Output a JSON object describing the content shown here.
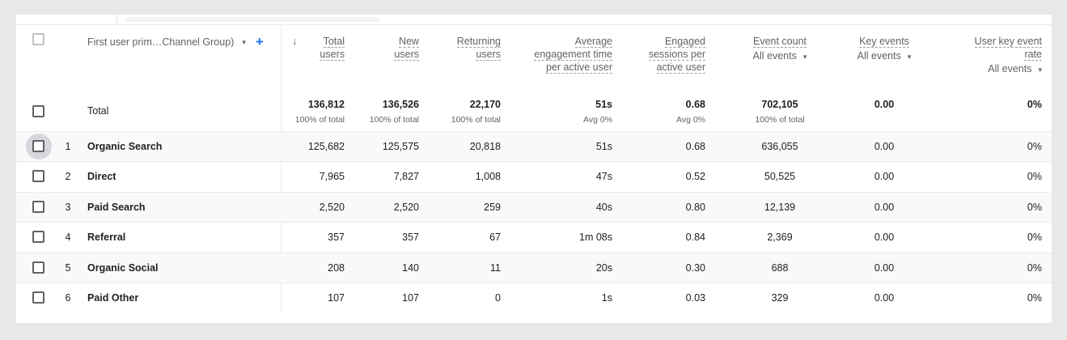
{
  "dimension_header": {
    "label": "First user prim…Channel Group)",
    "caret": "▾",
    "add": "+"
  },
  "sort_arrow": "↓",
  "metric_headers": [
    {
      "lines": [
        "Total",
        "users"
      ],
      "selector": ""
    },
    {
      "lines": [
        "New",
        "users"
      ],
      "selector": ""
    },
    {
      "lines": [
        "Returning",
        "users"
      ],
      "selector": ""
    },
    {
      "lines": [
        "Average",
        "engagement time",
        "per active user"
      ],
      "selector": ""
    },
    {
      "lines": [
        "Engaged",
        "sessions per",
        "active user"
      ],
      "selector": ""
    },
    {
      "lines": [
        "Event count"
      ],
      "selector": "All events"
    },
    {
      "lines": [
        "Key events"
      ],
      "selector": "All events"
    },
    {
      "lines": [
        "User key event",
        "rate"
      ],
      "selector": "All events"
    }
  ],
  "total": {
    "label": "Total",
    "values": [
      "136,812",
      "136,526",
      "22,170",
      "51s",
      "0.68",
      "702,105",
      "0.00",
      "0%"
    ],
    "subs": [
      "100% of total",
      "100% of total",
      "100% of total",
      "Avg 0%",
      "Avg 0%",
      "100% of total",
      "",
      ""
    ]
  },
  "rows": [
    {
      "index": "1",
      "name": "Organic Search",
      "values": [
        "125,682",
        "125,575",
        "20,818",
        "51s",
        "0.68",
        "636,055",
        "0.00",
        "0%"
      ]
    },
    {
      "index": "2",
      "name": "Direct",
      "values": [
        "7,965",
        "7,827",
        "1,008",
        "47s",
        "0.52",
        "50,525",
        "0.00",
        "0%"
      ]
    },
    {
      "index": "3",
      "name": "Paid Search",
      "values": [
        "2,520",
        "2,520",
        "259",
        "40s",
        "0.80",
        "12,139",
        "0.00",
        "0%"
      ]
    },
    {
      "index": "4",
      "name": "Referral",
      "values": [
        "357",
        "357",
        "67",
        "1m 08s",
        "0.84",
        "2,369",
        "0.00",
        "0%"
      ]
    },
    {
      "index": "5",
      "name": "Organic Social",
      "values": [
        "208",
        "140",
        "11",
        "20s",
        "0.30",
        "688",
        "0.00",
        "0%"
      ]
    },
    {
      "index": "6",
      "name": "Paid Other",
      "values": [
        "107",
        "107",
        "0",
        "1s",
        "0.03",
        "329",
        "0.00",
        "0%"
      ]
    }
  ]
}
